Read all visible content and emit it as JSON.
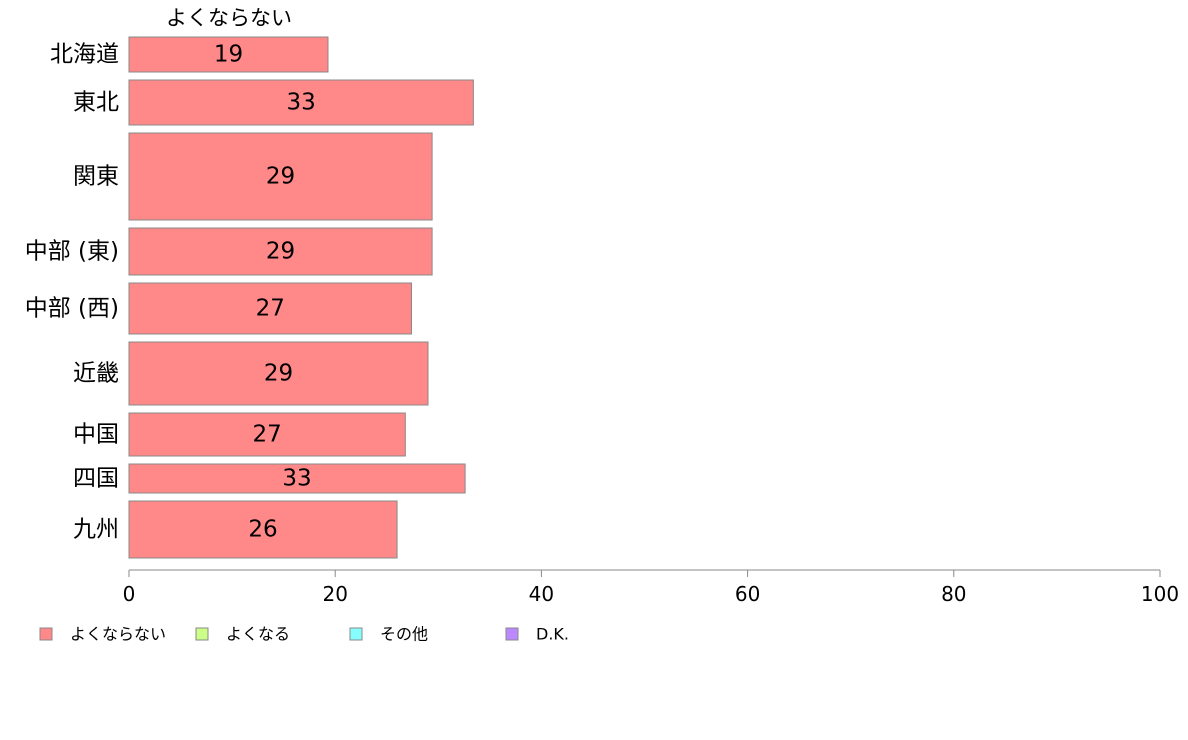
{
  "chart_data": {
    "type": "bar",
    "orientation": "horizontal",
    "variable_width": true,
    "categories": [
      "北海道",
      "東北",
      "関東",
      "中部 (東)",
      "中部 (西)",
      "近畿",
      "中国",
      "四国",
      "九州"
    ],
    "series": [
      {
        "name": "よくならない",
        "values": [
          19.3,
          33.4,
          29.4,
          29.4,
          27.4,
          29.0,
          26.8,
          32.6,
          26.0
        ],
        "labels": [
          "19",
          "33",
          "29",
          "29",
          "27",
          "29",
          "27",
          "33",
          "26"
        ]
      }
    ],
    "column_header": "よくならない",
    "xlim": [
      0,
      100
    ],
    "x_ticks": [
      "0",
      "20",
      "40",
      "60",
      "80",
      "100"
    ],
    "grid": false,
    "legend": {
      "position": "bottom",
      "entries": [
        "よくならない",
        "よくなる",
        "その他",
        "D.K."
      ]
    },
    "colors": {
      "よくならない": "#ff8888",
      "よくなる": "#ccff88",
      "その他": "#88ffff",
      "D.K.": "#bb88ff"
    }
  }
}
